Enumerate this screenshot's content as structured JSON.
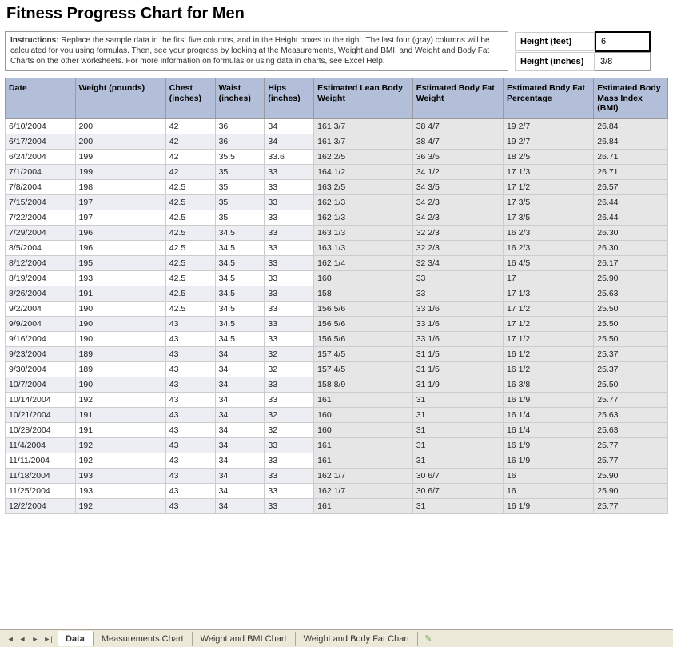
{
  "title": "Fitness Progress Chart for Men",
  "instructions": {
    "label": "Instructions:",
    "text": "Replace the sample data in the first five columns, and in the Height boxes to the right. The last four (gray) columns will be calculated for you using formulas. Then, see your progress by looking at the Measurements, Weight and BMI, and Weight and Body Fat Charts on the other worksheets. For more information on formulas or using data in charts, see Excel Help."
  },
  "height": {
    "feet_label": "Height (feet)",
    "feet_value": "6",
    "inches_label": "Height (inches)",
    "inches_value": "3/8"
  },
  "columns": [
    "Date",
    "Weight (pounds)",
    "Chest (inches)",
    "Waist (inches)",
    "Hips (inches)",
    "Estimated Lean Body Weight",
    "Estimated Body Fat Weight",
    "Estimated Body Fat Percentage",
    "Estimated Body Mass Index (BMI)"
  ],
  "rows": [
    [
      "6/10/2004",
      "200",
      "42",
      "36",
      "34",
      "161 3/7",
      "38 4/7",
      "19 2/7",
      "26.84"
    ],
    [
      "6/17/2004",
      "200",
      "42",
      "36",
      "34",
      "161 3/7",
      "38 4/7",
      "19 2/7",
      "26.84"
    ],
    [
      "6/24/2004",
      "199",
      "42",
      "35.5",
      "33.6",
      "162 2/5",
      "36 3/5",
      "18 2/5",
      "26.71"
    ],
    [
      "7/1/2004",
      "199",
      "42",
      "35",
      "33",
      "164 1/2",
      "34 1/2",
      "17 1/3",
      "26.71"
    ],
    [
      "7/8/2004",
      "198",
      "42.5",
      "35",
      "33",
      "163 2/5",
      "34 3/5",
      "17 1/2",
      "26.57"
    ],
    [
      "7/15/2004",
      "197",
      "42.5",
      "35",
      "33",
      "162 1/3",
      "34 2/3",
      "17 3/5",
      "26.44"
    ],
    [
      "7/22/2004",
      "197",
      "42.5",
      "35",
      "33",
      "162 1/3",
      "34 2/3",
      "17 3/5",
      "26.44"
    ],
    [
      "7/29/2004",
      "196",
      "42.5",
      "34.5",
      "33",
      "163 1/3",
      "32 2/3",
      "16 2/3",
      "26.30"
    ],
    [
      "8/5/2004",
      "196",
      "42.5",
      "34.5",
      "33",
      "163 1/3",
      "32 2/3",
      "16 2/3",
      "26.30"
    ],
    [
      "8/12/2004",
      "195",
      "42.5",
      "34.5",
      "33",
      "162 1/4",
      "32 3/4",
      "16 4/5",
      "26.17"
    ],
    [
      "8/19/2004",
      "193",
      "42.5",
      "34.5",
      "33",
      "160",
      "33",
      "17",
      "25.90"
    ],
    [
      "8/26/2004",
      "191",
      "42.5",
      "34.5",
      "33",
      "158",
      "33",
      "17 1/3",
      "25.63"
    ],
    [
      "9/2/2004",
      "190",
      "42.5",
      "34.5",
      "33",
      "156 5/6",
      "33 1/6",
      "17 1/2",
      "25.50"
    ],
    [
      "9/9/2004",
      "190",
      "43",
      "34.5",
      "33",
      "156 5/6",
      "33 1/6",
      "17 1/2",
      "25.50"
    ],
    [
      "9/16/2004",
      "190",
      "43",
      "34.5",
      "33",
      "156 5/6",
      "33 1/6",
      "17 1/2",
      "25.50"
    ],
    [
      "9/23/2004",
      "189",
      "43",
      "34",
      "32",
      "157 4/5",
      "31 1/5",
      "16 1/2",
      "25.37"
    ],
    [
      "9/30/2004",
      "189",
      "43",
      "34",
      "32",
      "157 4/5",
      "31 1/5",
      "16 1/2",
      "25.37"
    ],
    [
      "10/7/2004",
      "190",
      "43",
      "34",
      "33",
      "158 8/9",
      "31 1/9",
      "16 3/8",
      "25.50"
    ],
    [
      "10/14/2004",
      "192",
      "43",
      "34",
      "33",
      "161",
      "31",
      "16 1/9",
      "25.77"
    ],
    [
      "10/21/2004",
      "191",
      "43",
      "34",
      "32",
      "160",
      "31",
      "16 1/4",
      "25.63"
    ],
    [
      "10/28/2004",
      "191",
      "43",
      "34",
      "32",
      "160",
      "31",
      "16 1/4",
      "25.63"
    ],
    [
      "11/4/2004",
      "192",
      "43",
      "34",
      "33",
      "161",
      "31",
      "16 1/9",
      "25.77"
    ],
    [
      "11/11/2004",
      "192",
      "43",
      "34",
      "33",
      "161",
      "31",
      "16 1/9",
      "25.77"
    ],
    [
      "11/18/2004",
      "193",
      "43",
      "34",
      "33",
      "162 1/7",
      "30 6/7",
      "16",
      "25.90"
    ],
    [
      "11/25/2004",
      "193",
      "43",
      "34",
      "33",
      "162 1/7",
      "30 6/7",
      "16",
      "25.90"
    ],
    [
      "12/2/2004",
      "192",
      "43",
      "34",
      "33",
      "161",
      "31",
      "16 1/9",
      "25.77"
    ]
  ],
  "tabs": {
    "items": [
      "Data",
      "Measurements Chart",
      "Weight and BMI Chart",
      "Weight and Body Fat Chart"
    ],
    "active": 0
  },
  "colors": {
    "header_bg": "#b3bfd9",
    "row_even_bg": "#eceef4",
    "row_odd_bg": "#ffffff",
    "calc_bg": "#e6e6e6",
    "tab_bar_bg": "#ece9d8"
  }
}
